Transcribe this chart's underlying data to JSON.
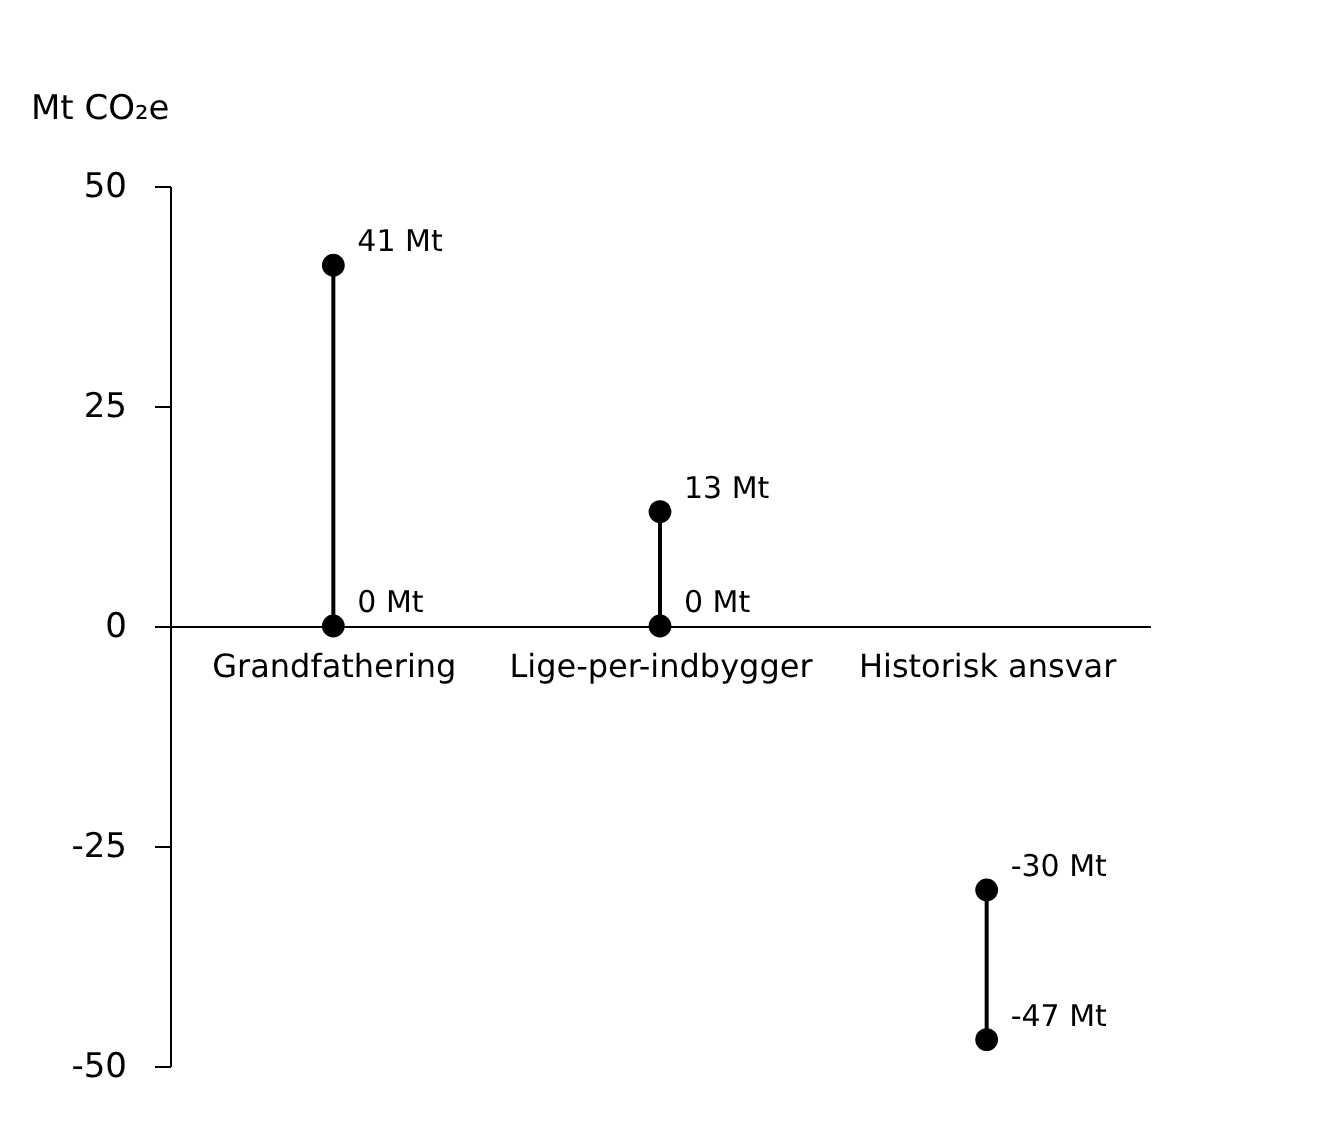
{
  "chart_data": {
    "type": "line",
    "ylabel": "Mt CO₂e",
    "categories": [
      "Grandfathering",
      "Lige-per-indbygger",
      "Historisk ansvar"
    ],
    "ylim": [
      -50,
      50
    ],
    "yticks": [
      -50,
      -25,
      0,
      25,
      50
    ],
    "grid": false,
    "legend": false,
    "marker": "circle",
    "line_style": "solid",
    "series": [
      {
        "color": "#000000",
        "x": [
          "Grandfathering",
          "Grandfathering"
        ],
        "values": [
          41,
          0
        ],
        "value_labels": [
          "41 Mt",
          "0 Mt"
        ]
      },
      {
        "color": "#000000",
        "x": [
          "Lige-per-indbygger",
          "Lige-per-indbygger"
        ],
        "values": [
          13,
          0
        ],
        "value_labels": [
          "13 Mt",
          "0 Mt"
        ]
      },
      {
        "color": "#000000",
        "x": [
          "Historisk ansvar",
          "Historisk ansvar"
        ],
        "values": [
          -30,
          -47
        ],
        "value_labels": [
          "-30 Mt",
          "-47 Mt"
        ]
      }
    ]
  }
}
